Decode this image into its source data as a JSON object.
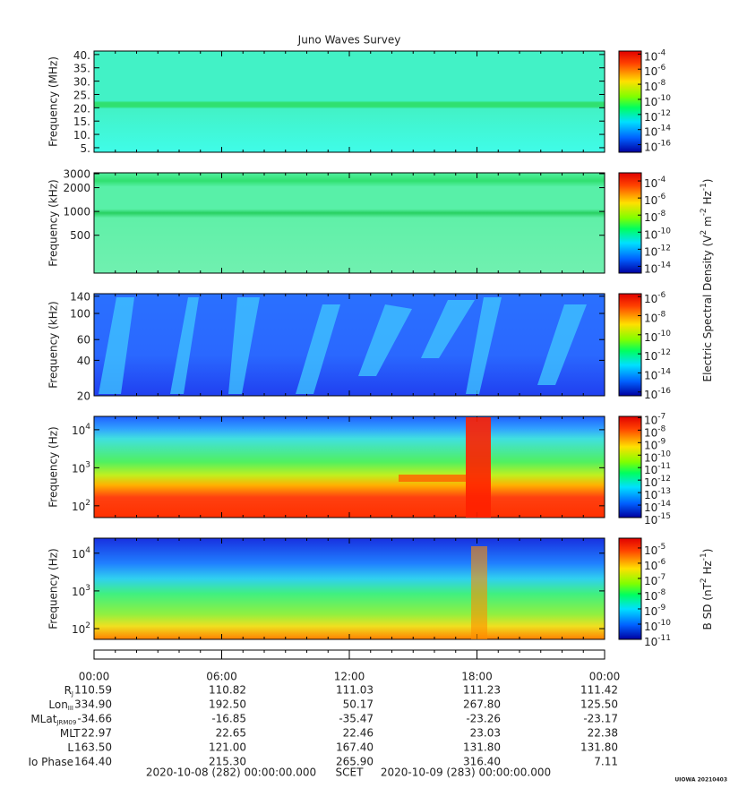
{
  "title": "Juno Waves Survey",
  "chart_data": [
    {
      "type": "spectrogram",
      "ylabel": "Frequency (MHz)",
      "yscale": "linear",
      "ylim": [
        3.3,
        41.3
      ],
      "yticks": [
        {
          "value": 5,
          "label": "5."
        },
        {
          "value": 10,
          "label": "10."
        },
        {
          "value": 15,
          "label": "15."
        },
        {
          "value": 20,
          "label": "20."
        },
        {
          "value": 25,
          "label": "25."
        },
        {
          "value": 30,
          "label": "30."
        },
        {
          "value": 35,
          "label": "35."
        },
        {
          "value": 40,
          "label": "40."
        }
      ],
      "clim": [
        1e-17,
        0.00025
      ],
      "cticks": [
        {
          "value": 0.0001,
          "label": "10",
          "sup": "-4"
        },
        {
          "value": 1e-06,
          "label": "10",
          "sup": "-6"
        },
        {
          "value": 1e-08,
          "label": "10",
          "sup": "-8"
        },
        {
          "value": 1e-10,
          "label": "10",
          "sup": "-10"
        },
        {
          "value": 1e-12,
          "label": "10",
          "sup": "-12"
        },
        {
          "value": 1e-14,
          "label": "10",
          "sup": "-14"
        },
        {
          "value": 1e-16,
          "label": "10",
          "sup": "-16"
        }
      ]
    },
    {
      "type": "spectrogram",
      "ylabel": "Frequency (kHz)",
      "yscale": "log",
      "ylim": [
        166,
        3080
      ],
      "yticks": [
        500,
        1000,
        2000,
        3000
      ],
      "clim": [
        1.6e-15,
        0.00089
      ],
      "cticks": [
        {
          "value": 0.0001,
          "label": "10",
          "sup": "-4"
        },
        {
          "value": 1e-06,
          "label": "10",
          "sup": "-6"
        },
        {
          "value": 1e-08,
          "label": "10",
          "sup": "-8"
        },
        {
          "value": 1e-10,
          "label": "10",
          "sup": "-10"
        },
        {
          "value": 1e-12,
          "label": "10",
          "sup": "-12"
        },
        {
          "value": 1e-14,
          "label": "10",
          "sup": "-14"
        }
      ],
      "clabel": [
        "Electric Spectral Density (V",
        "2",
        " m",
        "-2",
        " Hz",
        "-1",
        ")"
      ]
    },
    {
      "type": "spectrogram",
      "ylabel": "Frequency (kHz)",
      "yscale": "log",
      "ylim": [
        20,
        147
      ],
      "yticks": [
        20,
        40,
        60,
        100,
        140
      ],
      "clim": [
        4e-17,
        2e-06
      ],
      "cticks": [
        {
          "value": 1e-06,
          "label": "10",
          "sup": "-6"
        },
        {
          "value": 1e-08,
          "label": "10",
          "sup": "-8"
        },
        {
          "value": 1e-10,
          "label": "10",
          "sup": "-10"
        },
        {
          "value": 1e-12,
          "label": "10",
          "sup": "-12"
        },
        {
          "value": 1e-14,
          "label": "10",
          "sup": "-14"
        },
        {
          "value": 1e-16,
          "label": "10",
          "sup": "-16"
        }
      ]
    },
    {
      "type": "spectrogram",
      "ylabel": "Frequency (Hz)",
      "yscale": "log",
      "ylim": [
        49,
        22400
      ],
      "yticks": [
        {
          "value": 100,
          "label": "10",
          "sup": "2"
        },
        {
          "value": 1000,
          "label": "10",
          "sup": "3"
        },
        {
          "value": 10000,
          "label": "10",
          "sup": "4"
        }
      ],
      "clim": [
        1e-15,
        1.26e-07
      ],
      "cticks": [
        {
          "value": 1e-07,
          "label": "10",
          "sup": "-7"
        },
        {
          "value": 1e-08,
          "label": "10",
          "sup": "-8"
        },
        {
          "value": 1e-09,
          "label": "10",
          "sup": "-9"
        },
        {
          "value": 1e-10,
          "label": "10",
          "sup": "-10"
        },
        {
          "value": 1e-11,
          "label": "10",
          "sup": "-11"
        },
        {
          "value": 1e-12,
          "label": "10",
          "sup": "-12"
        },
        {
          "value": 1e-13,
          "label": "10",
          "sup": "-13"
        },
        {
          "value": 1e-14,
          "label": "10",
          "sup": "-14"
        },
        {
          "value": 1e-15,
          "label": "10",
          "sup": "-15"
        }
      ]
    },
    {
      "type": "spectrogram",
      "ylabel": "Frequency (Hz)",
      "yscale": "log",
      "ylim": [
        52,
        25000
      ],
      "yticks": [
        {
          "value": 100,
          "label": "10",
          "sup": "2"
        },
        {
          "value": 1000,
          "label": "10",
          "sup": "3"
        },
        {
          "value": 10000,
          "label": "10",
          "sup": "4"
        }
      ],
      "clim": [
        1e-11,
        4.4e-05
      ],
      "cticks": [
        {
          "value": 1e-05,
          "label": "10",
          "sup": "-5"
        },
        {
          "value": 1e-06,
          "label": "10",
          "sup": "-6"
        },
        {
          "value": 1e-07,
          "label": "10",
          "sup": "-7"
        },
        {
          "value": 1e-08,
          "label": "10",
          "sup": "-8"
        },
        {
          "value": 1e-09,
          "label": "10",
          "sup": "-9"
        },
        {
          "value": 1e-10,
          "label": "10",
          "sup": "-10"
        },
        {
          "value": 1e-11,
          "label": "10",
          "sup": "-11"
        }
      ],
      "clabel": [
        "B SD (nT",
        "2",
        " Hz",
        "-1",
        ")"
      ]
    }
  ],
  "time_ticks": [
    "00:00",
    "06:00",
    "12:00",
    "18:00",
    "00:00"
  ],
  "ephemeris": [
    {
      "label": [
        "R",
        "J"
      ],
      "values": [
        "110.59",
        "110.82",
        "111.03",
        "111.23",
        "111.42"
      ]
    },
    {
      "label": [
        "Lon",
        "III"
      ],
      "values": [
        "334.90",
        "192.50",
        "50.17",
        "267.80",
        "125.50"
      ]
    },
    {
      "label": [
        "MLat",
        "JRM09"
      ],
      "values": [
        "-34.66",
        "-16.85",
        "-35.47",
        "-23.26",
        "-23.17"
      ]
    },
    {
      "label": [
        "MLT"
      ],
      "values": [
        "22.97",
        "22.65",
        "22.46",
        "23.03",
        "22.38"
      ]
    },
    {
      "label": [
        "L"
      ],
      "values": [
        "163.50",
        "121.00",
        "167.40",
        "131.80",
        "131.80"
      ]
    },
    {
      "label": [
        "Io Phase"
      ],
      "values": [
        "164.40",
        "215.30",
        "265.90",
        "316.40",
        "7.11"
      ]
    }
  ],
  "footer": {
    "start": "2020-10-08 (282) 00:00:00.000",
    "scet": "SCET",
    "end": "2020-10-09 (283) 00:00:00.000",
    "stamp": "UIOWA 20210403"
  }
}
